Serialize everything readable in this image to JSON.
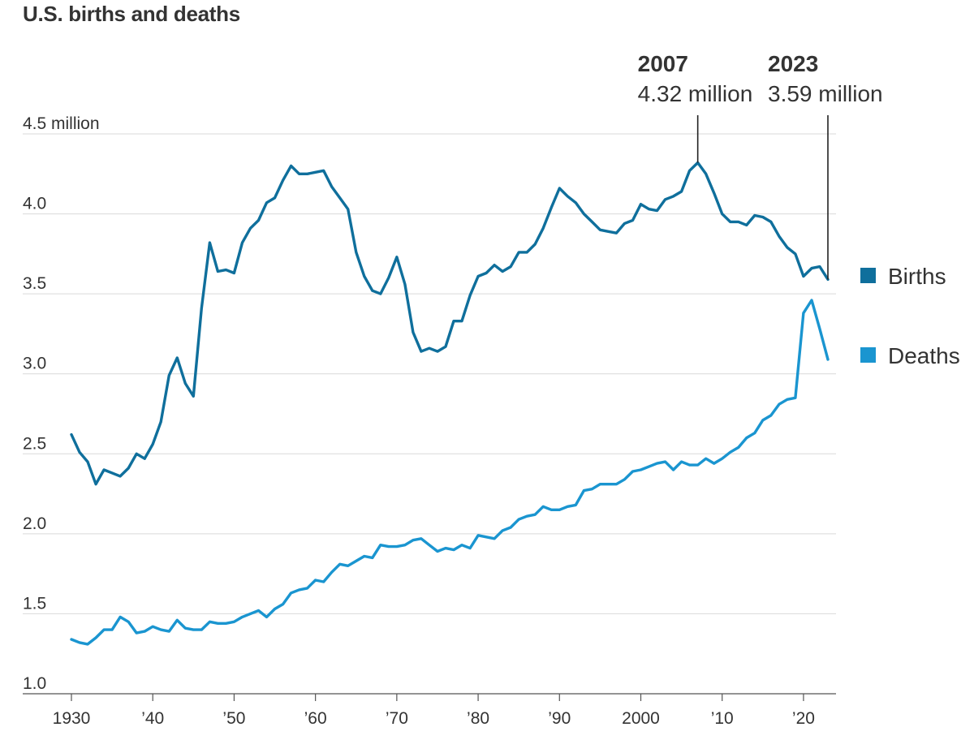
{
  "chart_data": {
    "type": "line",
    "title": "U.S. births and deaths",
    "y_unit_label": "4.5 million",
    "xlabel": "",
    "ylabel": "",
    "ylim": [
      1.0,
      4.5
    ],
    "xlim": [
      1930,
      2023
    ],
    "yticks": [
      {
        "value": 4.5,
        "label": "4.5 million"
      },
      {
        "value": 4.0,
        "label": "4.0"
      },
      {
        "value": 3.5,
        "label": "3.5"
      },
      {
        "value": 3.0,
        "label": "3.0"
      },
      {
        "value": 2.5,
        "label": "2.5"
      },
      {
        "value": 2.0,
        "label": "2.0"
      },
      {
        "value": 1.5,
        "label": "1.5"
      },
      {
        "value": 1.0,
        "label": "1.0"
      }
    ],
    "xticks": [
      {
        "value": 1930,
        "label": "1930"
      },
      {
        "value": 1940,
        "label": "’40"
      },
      {
        "value": 1950,
        "label": "’50"
      },
      {
        "value": 1960,
        "label": "’60"
      },
      {
        "value": 1970,
        "label": "’70"
      },
      {
        "value": 1980,
        "label": "’80"
      },
      {
        "value": 1990,
        "label": "’90"
      },
      {
        "value": 2000,
        "label": "2000"
      },
      {
        "value": 2010,
        "label": "’10"
      },
      {
        "value": 2020,
        "label": "’20"
      }
    ],
    "grid": true,
    "legend_placement": "right",
    "series": [
      {
        "name": "Births",
        "color": "#0f6f9c",
        "x": [
          1930,
          1931,
          1932,
          1933,
          1934,
          1935,
          1936,
          1937,
          1938,
          1939,
          1940,
          1941,
          1942,
          1943,
          1944,
          1945,
          1946,
          1947,
          1948,
          1949,
          1950,
          1951,
          1952,
          1953,
          1954,
          1955,
          1956,
          1957,
          1958,
          1959,
          1960,
          1961,
          1962,
          1963,
          1964,
          1965,
          1966,
          1967,
          1968,
          1969,
          1970,
          1971,
          1972,
          1973,
          1974,
          1975,
          1976,
          1977,
          1978,
          1979,
          1980,
          1981,
          1982,
          1983,
          1984,
          1985,
          1986,
          1987,
          1988,
          1989,
          1990,
          1991,
          1992,
          1993,
          1994,
          1995,
          1996,
          1997,
          1998,
          1999,
          2000,
          2001,
          2002,
          2003,
          2004,
          2005,
          2006,
          2007,
          2008,
          2009,
          2010,
          2011,
          2012,
          2013,
          2014,
          2015,
          2016,
          2017,
          2018,
          2019,
          2020,
          2021,
          2022,
          2023
        ],
        "values": [
          2.62,
          2.51,
          2.45,
          2.31,
          2.4,
          2.38,
          2.36,
          2.41,
          2.5,
          2.47,
          2.56,
          2.7,
          2.99,
          3.1,
          2.94,
          2.86,
          3.41,
          3.82,
          3.64,
          3.65,
          3.63,
          3.82,
          3.91,
          3.96,
          4.07,
          4.1,
          4.21,
          4.3,
          4.25,
          4.25,
          4.26,
          4.27,
          4.17,
          4.1,
          4.03,
          3.76,
          3.61,
          3.52,
          3.5,
          3.6,
          3.73,
          3.56,
          3.26,
          3.14,
          3.16,
          3.14,
          3.17,
          3.33,
          3.33,
          3.49,
          3.61,
          3.63,
          3.68,
          3.64,
          3.67,
          3.76,
          3.76,
          3.81,
          3.91,
          4.04,
          4.16,
          4.11,
          4.07,
          4.0,
          3.95,
          3.9,
          3.89,
          3.88,
          3.94,
          3.96,
          4.06,
          4.03,
          4.02,
          4.09,
          4.11,
          4.14,
          4.27,
          4.32,
          4.25,
          4.13,
          4.0,
          3.95,
          3.95,
          3.93,
          3.99,
          3.98,
          3.95,
          3.86,
          3.79,
          3.75,
          3.61,
          3.66,
          3.67,
          3.59
        ]
      },
      {
        "name": "Deaths",
        "color": "#1a95d0",
        "x": [
          1930,
          1931,
          1932,
          1933,
          1934,
          1935,
          1936,
          1937,
          1938,
          1939,
          1940,
          1941,
          1942,
          1943,
          1944,
          1945,
          1946,
          1947,
          1948,
          1949,
          1950,
          1951,
          1952,
          1953,
          1954,
          1955,
          1956,
          1957,
          1958,
          1959,
          1960,
          1961,
          1962,
          1963,
          1964,
          1965,
          1966,
          1967,
          1968,
          1969,
          1970,
          1971,
          1972,
          1973,
          1974,
          1975,
          1976,
          1977,
          1978,
          1979,
          1980,
          1981,
          1982,
          1983,
          1984,
          1985,
          1986,
          1987,
          1988,
          1989,
          1990,
          1991,
          1992,
          1993,
          1994,
          1995,
          1996,
          1997,
          1998,
          1999,
          2000,
          2001,
          2002,
          2003,
          2004,
          2005,
          2006,
          2007,
          2008,
          2009,
          2010,
          2011,
          2012,
          2013,
          2014,
          2015,
          2016,
          2017,
          2018,
          2019,
          2020,
          2021,
          2022,
          2023
        ],
        "values": [
          1.34,
          1.32,
          1.31,
          1.35,
          1.4,
          1.4,
          1.48,
          1.45,
          1.38,
          1.39,
          1.42,
          1.4,
          1.39,
          1.46,
          1.41,
          1.4,
          1.4,
          1.45,
          1.44,
          1.44,
          1.45,
          1.48,
          1.5,
          1.52,
          1.48,
          1.53,
          1.56,
          1.63,
          1.65,
          1.66,
          1.71,
          1.7,
          1.76,
          1.81,
          1.8,
          1.83,
          1.86,
          1.85,
          1.93,
          1.92,
          1.92,
          1.93,
          1.96,
          1.97,
          1.93,
          1.89,
          1.91,
          1.9,
          1.93,
          1.91,
          1.99,
          1.98,
          1.97,
          2.02,
          2.04,
          2.09,
          2.11,
          2.12,
          2.17,
          2.15,
          2.15,
          2.17,
          2.18,
          2.27,
          2.28,
          2.31,
          2.31,
          2.31,
          2.34,
          2.39,
          2.4,
          2.42,
          2.44,
          2.45,
          2.4,
          2.45,
          2.43,
          2.43,
          2.47,
          2.44,
          2.47,
          2.51,
          2.54,
          2.6,
          2.63,
          2.71,
          2.74,
          2.81,
          2.84,
          2.85,
          3.38,
          3.46,
          3.28,
          3.09
        ]
      }
    ],
    "annotations": [
      {
        "year_label": "2007",
        "value_label": "4.32 million",
        "x": 2007,
        "y": 4.32
      },
      {
        "year_label": "2023",
        "value_label": "3.59 million",
        "x": 2023,
        "y": 3.59
      }
    ]
  }
}
